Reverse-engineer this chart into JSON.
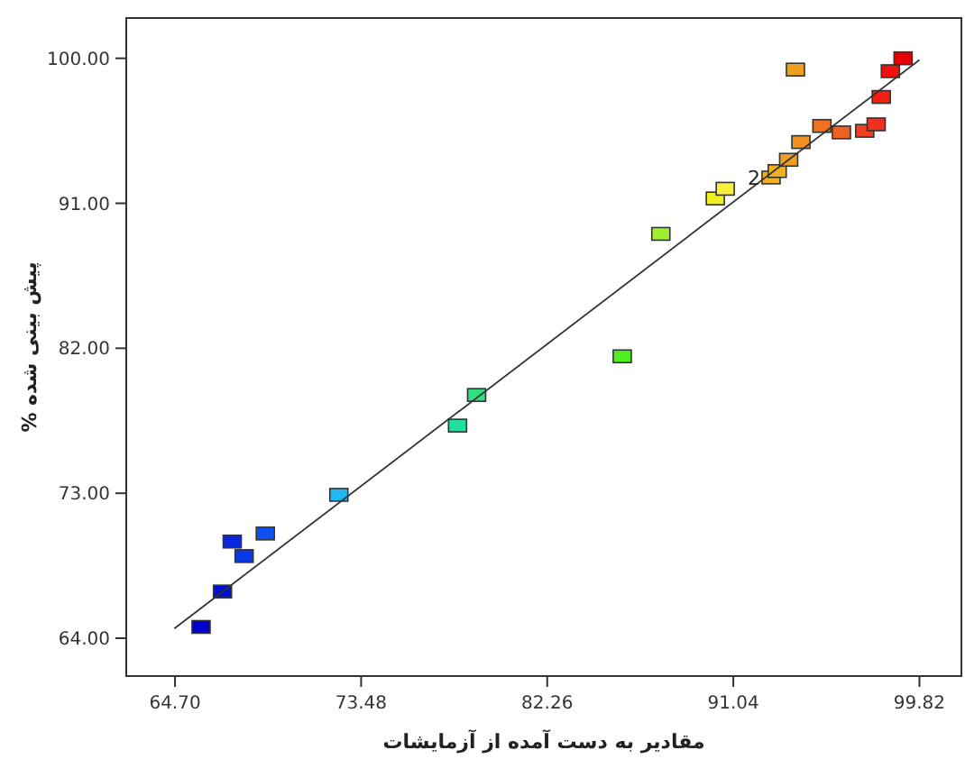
{
  "chart_data": {
    "type": "scatter",
    "xlabel": "مقادیر به دست آمده از آزمایشات",
    "ylabel": "% پیش بینی شده",
    "xlim": [
      62.4,
      101.8
    ],
    "ylim": [
      61.65,
      102.5
    ],
    "xticks": [
      {
        "value": 64.7,
        "label": "64.70"
      },
      {
        "value": 73.48,
        "label": "73.48"
      },
      {
        "value": 82.26,
        "label": "82.26"
      },
      {
        "value": 91.04,
        "label": "91.04"
      },
      {
        "value": 99.82,
        "label": "99.82"
      }
    ],
    "yticks": [
      {
        "value": 64,
        "label": "64.00"
      },
      {
        "value": 73,
        "label": "73.00"
      },
      {
        "value": 82,
        "label": "82.00"
      },
      {
        "value": 91,
        "label": "91.00"
      },
      {
        "value": 100,
        "label": "100.00"
      }
    ],
    "grid": false,
    "marker": "square",
    "series": [
      {
        "x": [
          65.93,
          66.94,
          67.4,
          67.96,
          68.96,
          72.43,
          78.03,
          78.93,
          85.8,
          87.62,
          90.19,
          90.66,
          92.82,
          93.11,
          93.65,
          93.97,
          94.23,
          95.22,
          96.14,
          97.24,
          97.78,
          98.02,
          98.45,
          99.05
        ],
        "values": [
          64.7,
          66.9,
          70.0,
          69.1,
          70.5,
          72.9,
          77.2,
          79.1,
          81.5,
          89.1,
          91.3,
          91.9,
          92.6,
          93.0,
          93.7,
          99.3,
          94.8,
          95.8,
          95.4,
          95.5,
          95.9,
          97.6,
          99.2,
          100.0
        ],
        "colors": [
          "#0000c8",
          "#0010d0",
          "#0828e0",
          "#0838e8",
          "#1050f0",
          "#20b8f0",
          "#20e0a0",
          "#30e080",
          "#50f020",
          "#a0f030",
          "#f0f020",
          "#f8f040",
          "#f0b020",
          "#f0b020",
          "#f0a020",
          "#f0a020",
          "#f09020",
          "#f07020",
          "#f06020",
          "#f04020",
          "#f03020",
          "#f02010",
          "#f01010",
          "#e80000"
        ]
      },
      {
        "type": "line",
        "x": [
          64.67,
          99.82
        ],
        "values": [
          64.6,
          99.9
        ],
        "color": "#333333",
        "marker": "none",
        "line_style": "solid"
      }
    ],
    "annotations": [
      {
        "text": "2",
        "x": 92.82,
        "y": 92.6
      }
    ]
  }
}
